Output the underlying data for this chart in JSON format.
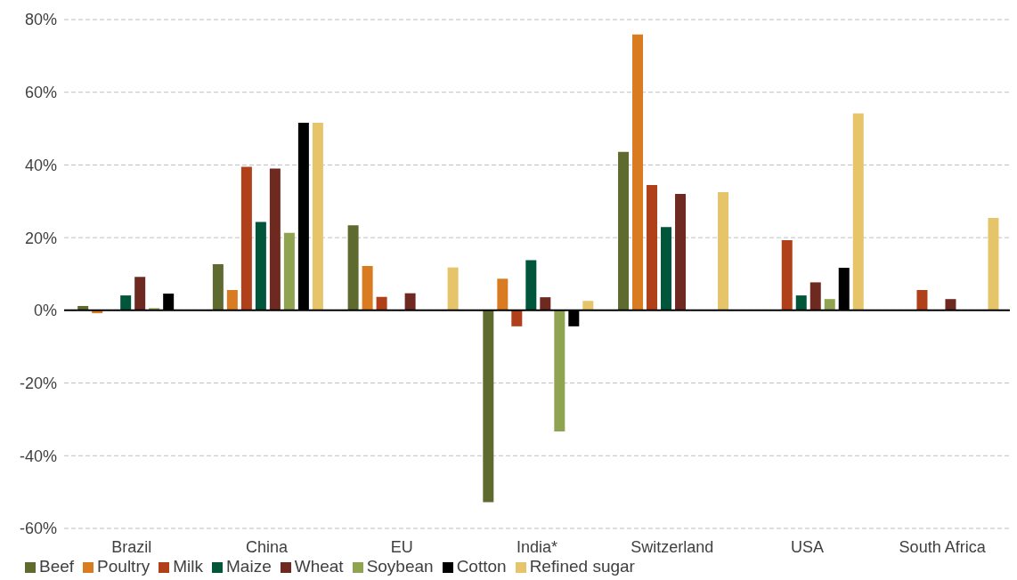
{
  "chart_data": {
    "type": "bar",
    "categories": [
      "Brazil",
      "China",
      "EU",
      "India*",
      "Switzerland",
      "USA",
      "South Africa"
    ],
    "series": [
      {
        "name": "Beef",
        "color": "#5f6b2e",
        "values": [
          1.2,
          12.7,
          23.4,
          -52.8,
          43.6,
          0,
          null
        ]
      },
      {
        "name": "Poultry",
        "color": "#d97b20",
        "values": [
          -0.8,
          5.6,
          12.2,
          8.7,
          75.9,
          null,
          null
        ]
      },
      {
        "name": "Milk",
        "color": "#b0401a",
        "values": [
          0,
          39.5,
          3.7,
          -4.4,
          34.5,
          19.3,
          5.6
        ]
      },
      {
        "name": "Maize",
        "color": "#00553b",
        "values": [
          4.1,
          24.3,
          null,
          13.8,
          22.9,
          4.1,
          null
        ]
      },
      {
        "name": "Wheat",
        "color": "#6e2a20",
        "values": [
          9.2,
          39,
          4.7,
          3.6,
          32,
          7.7,
          3.1
        ]
      },
      {
        "name": "Soybean",
        "color": "#8fa350",
        "values": [
          0.6,
          21.3,
          null,
          -33.3,
          null,
          3.1,
          null
        ]
      },
      {
        "name": "Cotton",
        "color": "#000000",
        "values": [
          4.6,
          51.6,
          null,
          -4.4,
          null,
          11.7,
          null
        ]
      },
      {
        "name": "Refined sugar",
        "color": "#e6c46a",
        "values": [
          null,
          51.6,
          11.8,
          2.6,
          32.5,
          54.2,
          25.4
        ]
      }
    ],
    "ylim": [
      -60,
      80
    ],
    "yticks": [
      {
        "value": -60,
        "label": "-60%"
      },
      {
        "value": -40,
        "label": "-40%"
      },
      {
        "value": -20,
        "label": "-20%"
      },
      {
        "value": 0,
        "label": "0%"
      },
      {
        "value": 20,
        "label": "20%"
      },
      {
        "value": 40,
        "label": "40%"
      },
      {
        "value": 60,
        "label": "60%"
      },
      {
        "value": 80,
        "label": "80%"
      }
    ],
    "grid": "y",
    "legend": "bottom left"
  }
}
